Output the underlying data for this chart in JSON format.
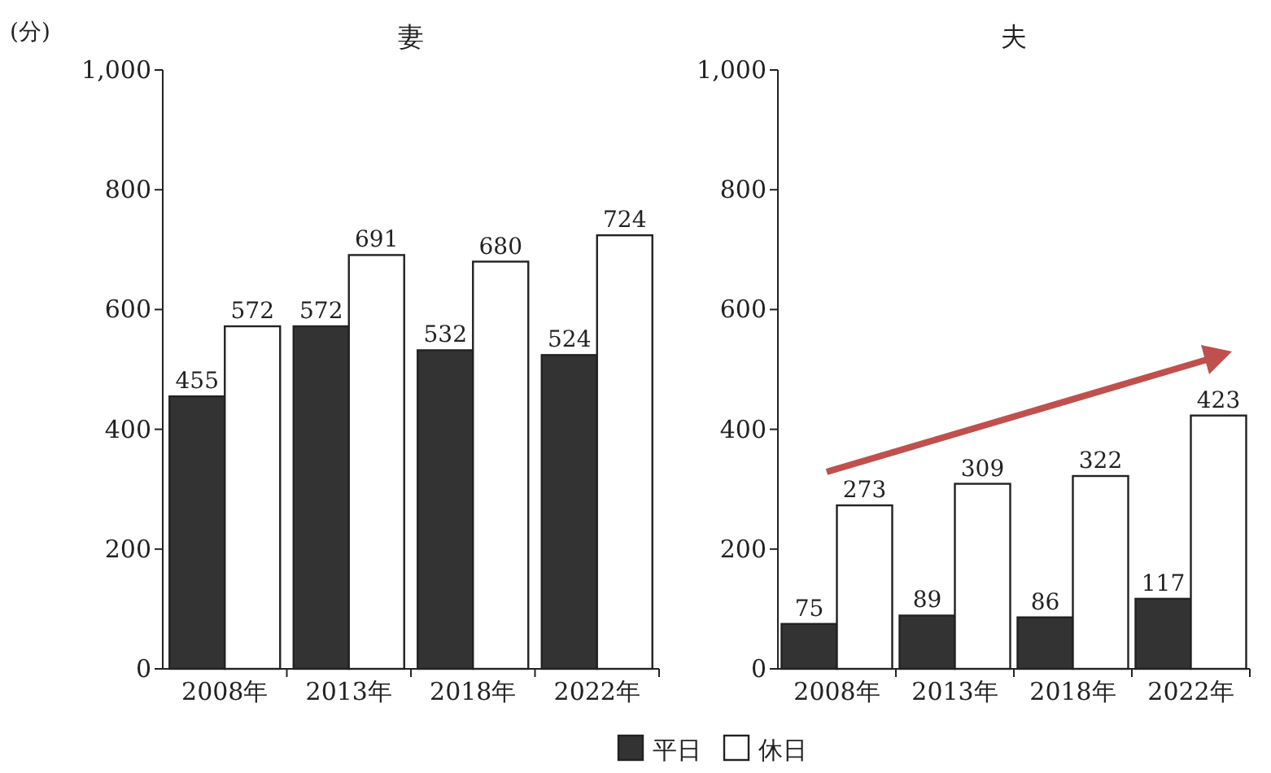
{
  "chart_data": [
    {
      "type": "bar",
      "title": "妻",
      "ylabel": "(分)",
      "categories": [
        "2008年",
        "2013年",
        "2018年",
        "2022年"
      ],
      "series": [
        {
          "color": "#333333",
          "values": [
            455,
            572,
            532,
            524
          ]
        },
        {
          "color": "#ffffff",
          "values": [
            572,
            691,
            680,
            724
          ]
        }
      ],
      "ylim": [
        0,
        1000
      ],
      "yticks": [
        0,
        200,
        400,
        600,
        800,
        {
          "value": 1000,
          "label": "1,000"
        }
      ],
      "data_labels": true
    },
    {
      "type": "bar",
      "title": "夫",
      "categories": [
        "2008年",
        "2013年",
        "2018年",
        "2022年"
      ],
      "series": [
        {
          "name": "平日",
          "color": "#333333",
          "values": [
            75,
            89,
            86,
            117
          ]
        },
        {
          "name": "休日",
          "color": "#ffffff",
          "values": [
            273,
            309,
            322,
            423
          ]
        }
      ],
      "ylim": [
        0,
        1000
      ],
      "yticks": [
        0,
        200,
        400,
        600,
        800,
        {
          "value": 1000,
          "label": "1,000"
        }
      ],
      "data_labels": true,
      "legend": "bottom"
    }
  ]
}
